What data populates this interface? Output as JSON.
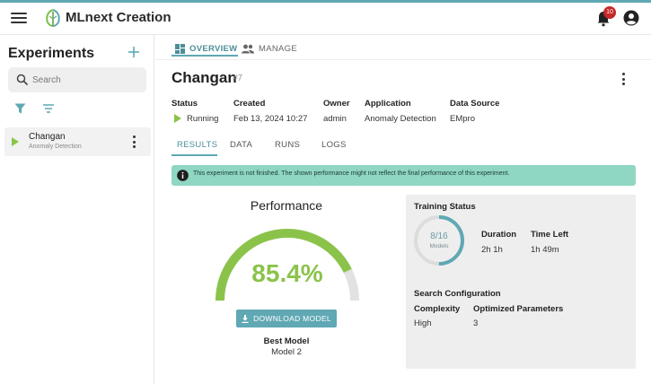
{
  "app": {
    "title": "MLnext Creation",
    "notification_count": "10"
  },
  "sidebar": {
    "title": "Experiments",
    "search_placeholder": "Search",
    "items": [
      {
        "name": "Changan",
        "subtitle": "Anomaly Detection"
      }
    ]
  },
  "main": {
    "tabs": [
      {
        "label": "OVERVIEW",
        "active": true
      },
      {
        "label": "MANAGE",
        "active": false
      }
    ],
    "experiment": {
      "name": "Changan",
      "id": "#7"
    },
    "meta": [
      {
        "label": "Status",
        "value": "Running"
      },
      {
        "label": "Created",
        "value": "Feb 13, 2024 10:27"
      },
      {
        "label": "Owner",
        "value": "admin"
      },
      {
        "label": "Application",
        "value": "Anomaly Detection"
      },
      {
        "label": "Data Source",
        "value": "EMpro"
      }
    ],
    "sub_tabs": [
      {
        "label": "RESULTS",
        "active": true
      },
      {
        "label": "DATA",
        "active": false
      },
      {
        "label": "RUNS",
        "active": false
      },
      {
        "label": "LOGS",
        "active": false
      }
    ],
    "notice": "This experiment is not finished. The shown performance might not reflect the final performance of this experiment."
  },
  "performance": {
    "title": "Performance",
    "value": "85.4%",
    "fraction": 0.854,
    "download_label": "DOWNLOAD MODEL",
    "best_model_label": "Best Model",
    "best_model_value": "Model 2"
  },
  "training_status": {
    "title": "Training Status",
    "progress_text": "8/16",
    "progress_sub": "Models",
    "progress_fraction": 0.5,
    "duration_label": "Duration",
    "duration_value": "2h 1h",
    "time_left_label": "Time Left",
    "time_left_value": "1h 49m"
  },
  "search_config": {
    "title": "Search Configuration",
    "complexity_label": "Complexity",
    "complexity_value": "High",
    "optimized_label": "Optimized Parameters",
    "optimized_value": "3"
  },
  "colors": {
    "accent": "#5fa8b4",
    "notice_bg": "#8fd6c3",
    "gauge_fill": "#8bc34a",
    "gauge_track": "#e2e2e2",
    "badge": "#c62828"
  },
  "icons": [
    "menu-icon",
    "logo-icon",
    "bell-icon",
    "account-icon",
    "add-icon",
    "search-icon",
    "filter-icon",
    "sort-icon",
    "play-icon",
    "more-vert-icon",
    "dashboard-icon",
    "people-icon",
    "info-icon",
    "download-icon"
  ]
}
